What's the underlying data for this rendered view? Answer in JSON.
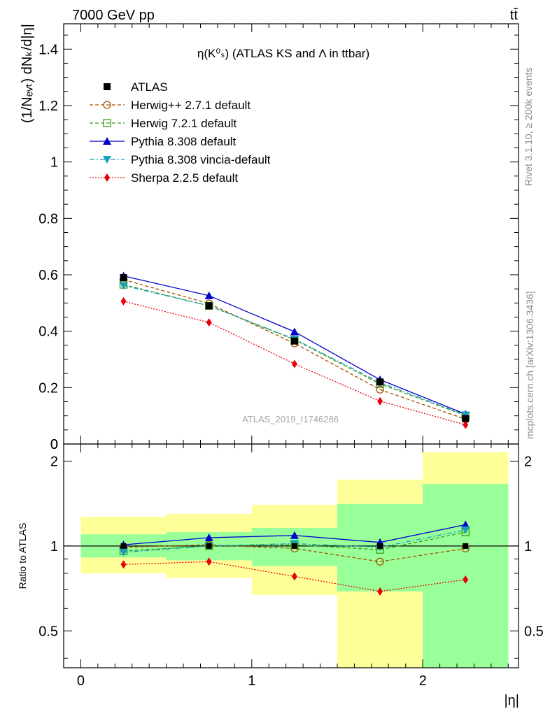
{
  "header": {
    "left": "7000 GeV pp",
    "right": "tt̄"
  },
  "side_labels": {
    "rivet": "Rivet 3.1.10, ≥ 200k events",
    "mcplots": "mcplots.cern.ch [arXiv:1306.3436]"
  },
  "watermark": "ATLAS_2019_I1746286",
  "chart_data": [
    {
      "type": "line",
      "title": "η(K⁰ₛ) (ATLAS KS and Λ in ttbar)",
      "ylabel": "(1/Nₑᵥₜ) dNₖ/d|η|",
      "xlim": [
        -0.1,
        2.56
      ],
      "ylim": [
        0,
        1.49
      ],
      "y_ticks": [
        "0",
        "0.2",
        "0.4",
        "0.6",
        "0.8",
        "1",
        "1.2",
        "1.4"
      ],
      "x": [
        0.25,
        0.75,
        1.25,
        1.75,
        2.25
      ],
      "legend_position": "top-left",
      "series": [
        {
          "name": "ATLAS",
          "color": "#000000",
          "marker": "square-filled",
          "values": [
            0.59,
            0.49,
            0.365,
            0.22,
            0.09
          ]
        },
        {
          "name": "Herwig++ 2.7.1 default",
          "color": "#a35200",
          "marker": "circle-open",
          "dash": "5,3",
          "values": [
            0.583,
            0.498,
            0.357,
            0.193,
            0.088
          ]
        },
        {
          "name": "Herwig 7.2.1 default",
          "color": "#3a9a1a",
          "marker": "square-open",
          "dash": "5,3",
          "values": [
            0.565,
            0.49,
            0.37,
            0.213,
            0.101
          ]
        },
        {
          "name": "Pythia 8.308 default",
          "color": "#0000cc",
          "marker": "triangle-up",
          "values": [
            0.596,
            0.526,
            0.398,
            0.228,
            0.106
          ]
        },
        {
          "name": "Pythia 8.308 vincia-default",
          "color": "#1aa0bb",
          "marker": "triangle-down",
          "dash": "7,3,2,3",
          "values": [
            0.562,
            0.49,
            0.372,
            0.218,
            0.103
          ]
        },
        {
          "name": "Sherpa 2.2.5 default",
          "color": "#e8000b",
          "marker": "diamond",
          "dash": "2,2",
          "values": [
            0.506,
            0.431,
            0.284,
            0.152,
            0.068
          ]
        }
      ]
    },
    {
      "type": "line",
      "ylabel": "Ratio to ATLAS",
      "xlabel": "|η|",
      "xlim": [
        -0.1,
        2.56
      ],
      "ylim": [
        0.37,
        2.3
      ],
      "log_y": true,
      "x_ticks": [
        "0",
        "1",
        "2"
      ],
      "y_ticks": [
        "0.5",
        "1",
        "2"
      ],
      "bins": [
        [
          0,
          0.5
        ],
        [
          0.5,
          1
        ],
        [
          1,
          1.5
        ],
        [
          1.5,
          2
        ],
        [
          2,
          2.5
        ]
      ],
      "band_yellow": [
        [
          0.8,
          1.27
        ],
        [
          0.77,
          1.3
        ],
        [
          0.67,
          1.4
        ],
        [
          0.37,
          1.72
        ],
        [
          0.37,
          2.15
        ]
      ],
      "band_green": [
        [
          0.91,
          1.1
        ],
        [
          0.89,
          1.12
        ],
        [
          0.85,
          1.16
        ],
        [
          0.69,
          1.41
        ],
        [
          0.37,
          1.66
        ]
      ],
      "x": [
        0.25,
        0.75,
        1.25,
        1.75,
        2.25
      ],
      "series": [
        {
          "name": "Herwig++ 2.7.1 default",
          "color": "#a35200",
          "marker": "circle-open",
          "dash": "5,3",
          "values": [
            0.99,
            1.01,
            0.98,
            0.88,
            0.98
          ]
        },
        {
          "name": "Herwig 7.2.1 default",
          "color": "#3a9a1a",
          "marker": "square-open",
          "dash": "5,3",
          "values": [
            0.96,
            1.0,
            1.01,
            0.97,
            1.12
          ]
        },
        {
          "name": "Pythia 8.308 default",
          "color": "#0000cc",
          "marker": "triangle-up",
          "values": [
            1.01,
            1.07,
            1.09,
            1.03,
            1.19
          ]
        },
        {
          "name": "Pythia 8.308 vincia-default",
          "color": "#1aa0bb",
          "marker": "triangle-down",
          "dash": "7,3,2,3",
          "values": [
            0.95,
            1.0,
            1.02,
            0.99,
            1.14
          ]
        },
        {
          "name": "Sherpa 2.2.5 default",
          "color": "#e8000b",
          "marker": "diamond",
          "dash": "2,2",
          "values": [
            0.86,
            0.88,
            0.78,
            0.69,
            0.76
          ]
        }
      ]
    }
  ]
}
